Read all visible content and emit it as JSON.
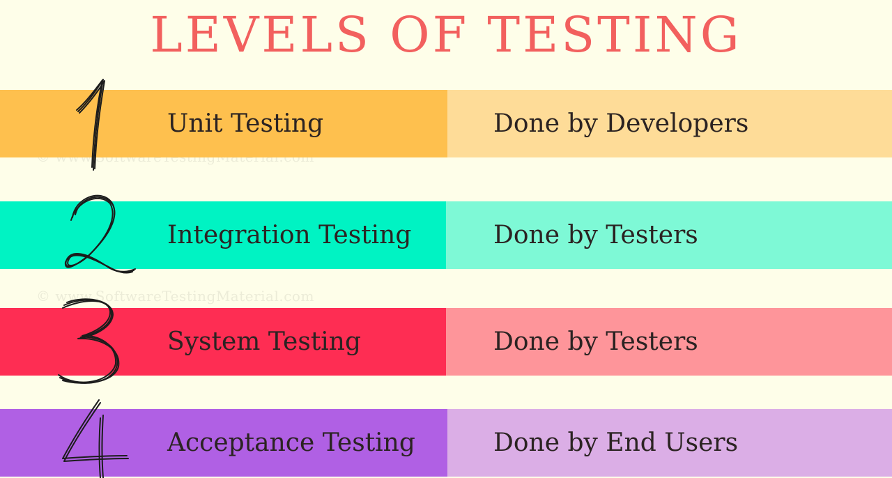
{
  "title": "LEVELS OF TESTING",
  "watermark": "©  www.SoftwareTestingMaterial.com",
  "levels": [
    {
      "numeral": "1",
      "name": "Unit Testing",
      "done_by": "Done by Developers",
      "color_left": "#fec04e",
      "color_right": "#fedc98"
    },
    {
      "numeral": "2",
      "name": "Integration Testing",
      "done_by": "Done by Testers",
      "color_left": "#00f3c3",
      "color_right": "#7ef9d6"
    },
    {
      "numeral": "3",
      "name": "System Testing",
      "done_by": "Done by Testers",
      "color_left": "#fe2d53",
      "color_right": "#fe959a"
    },
    {
      "numeral": "4",
      "name": "Acceptance Testing",
      "done_by": "Done by End Users",
      "color_left": "#b060e4",
      "color_right": "#dbaee6"
    }
  ]
}
